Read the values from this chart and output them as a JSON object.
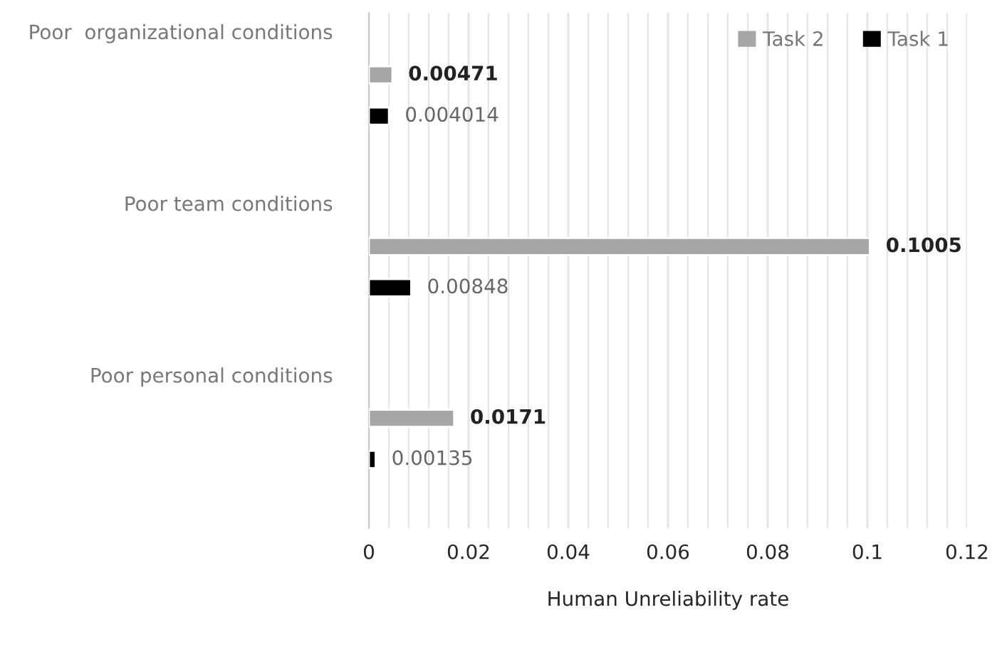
{
  "chart_data": {
    "type": "bar",
    "orientation": "horizontal",
    "xlabel": "Human Unreliability rate",
    "categories": [
      "Poor  organizational conditions",
      "Poor team conditions",
      "Poor personal conditions"
    ],
    "series": [
      {
        "name": "Task 2",
        "color": "#a6a6a6",
        "values": [
          0.00471,
          0.1005,
          0.0171
        ]
      },
      {
        "name": "Task 1",
        "color": "#000000",
        "values": [
          0.004014,
          0.00848,
          0.00135
        ]
      }
    ],
    "xlim": [
      0,
      0.12
    ],
    "xticks": [
      0,
      {
        "value": 0.004,
        "label": null
      },
      {
        "value": 0.008,
        "label": null
      },
      {
        "value": 0.012,
        "label": null
      },
      {
        "value": 0.016,
        "label": null
      },
      0.02,
      {
        "value": 0.024,
        "label": null
      },
      {
        "value": 0.028,
        "label": null
      },
      {
        "value": 0.032,
        "label": null
      },
      {
        "value": 0.036,
        "label": null
      },
      0.04,
      {
        "value": 0.044,
        "label": null
      },
      {
        "value": 0.048,
        "label": null
      },
      {
        "value": 0.052,
        "label": null
      },
      {
        "value": 0.056,
        "label": null
      },
      0.06,
      {
        "value": 0.064,
        "label": null
      },
      {
        "value": 0.068,
        "label": null
      },
      {
        "value": 0.072,
        "label": null
      },
      {
        "value": 0.076,
        "label": null
      },
      0.08,
      {
        "value": 0.084,
        "label": null
      },
      {
        "value": 0.088,
        "label": null
      },
      {
        "value": 0.092,
        "label": null
      },
      {
        "value": 0.096,
        "label": null
      },
      0.1,
      {
        "value": 0.104,
        "label": null
      },
      {
        "value": 0.108,
        "label": null
      },
      {
        "value": 0.112,
        "label": null
      },
      {
        "value": 0.116,
        "label": null
      },
      0.12
    ],
    "grid": "x",
    "legend": "top right",
    "data_labels": true
  }
}
